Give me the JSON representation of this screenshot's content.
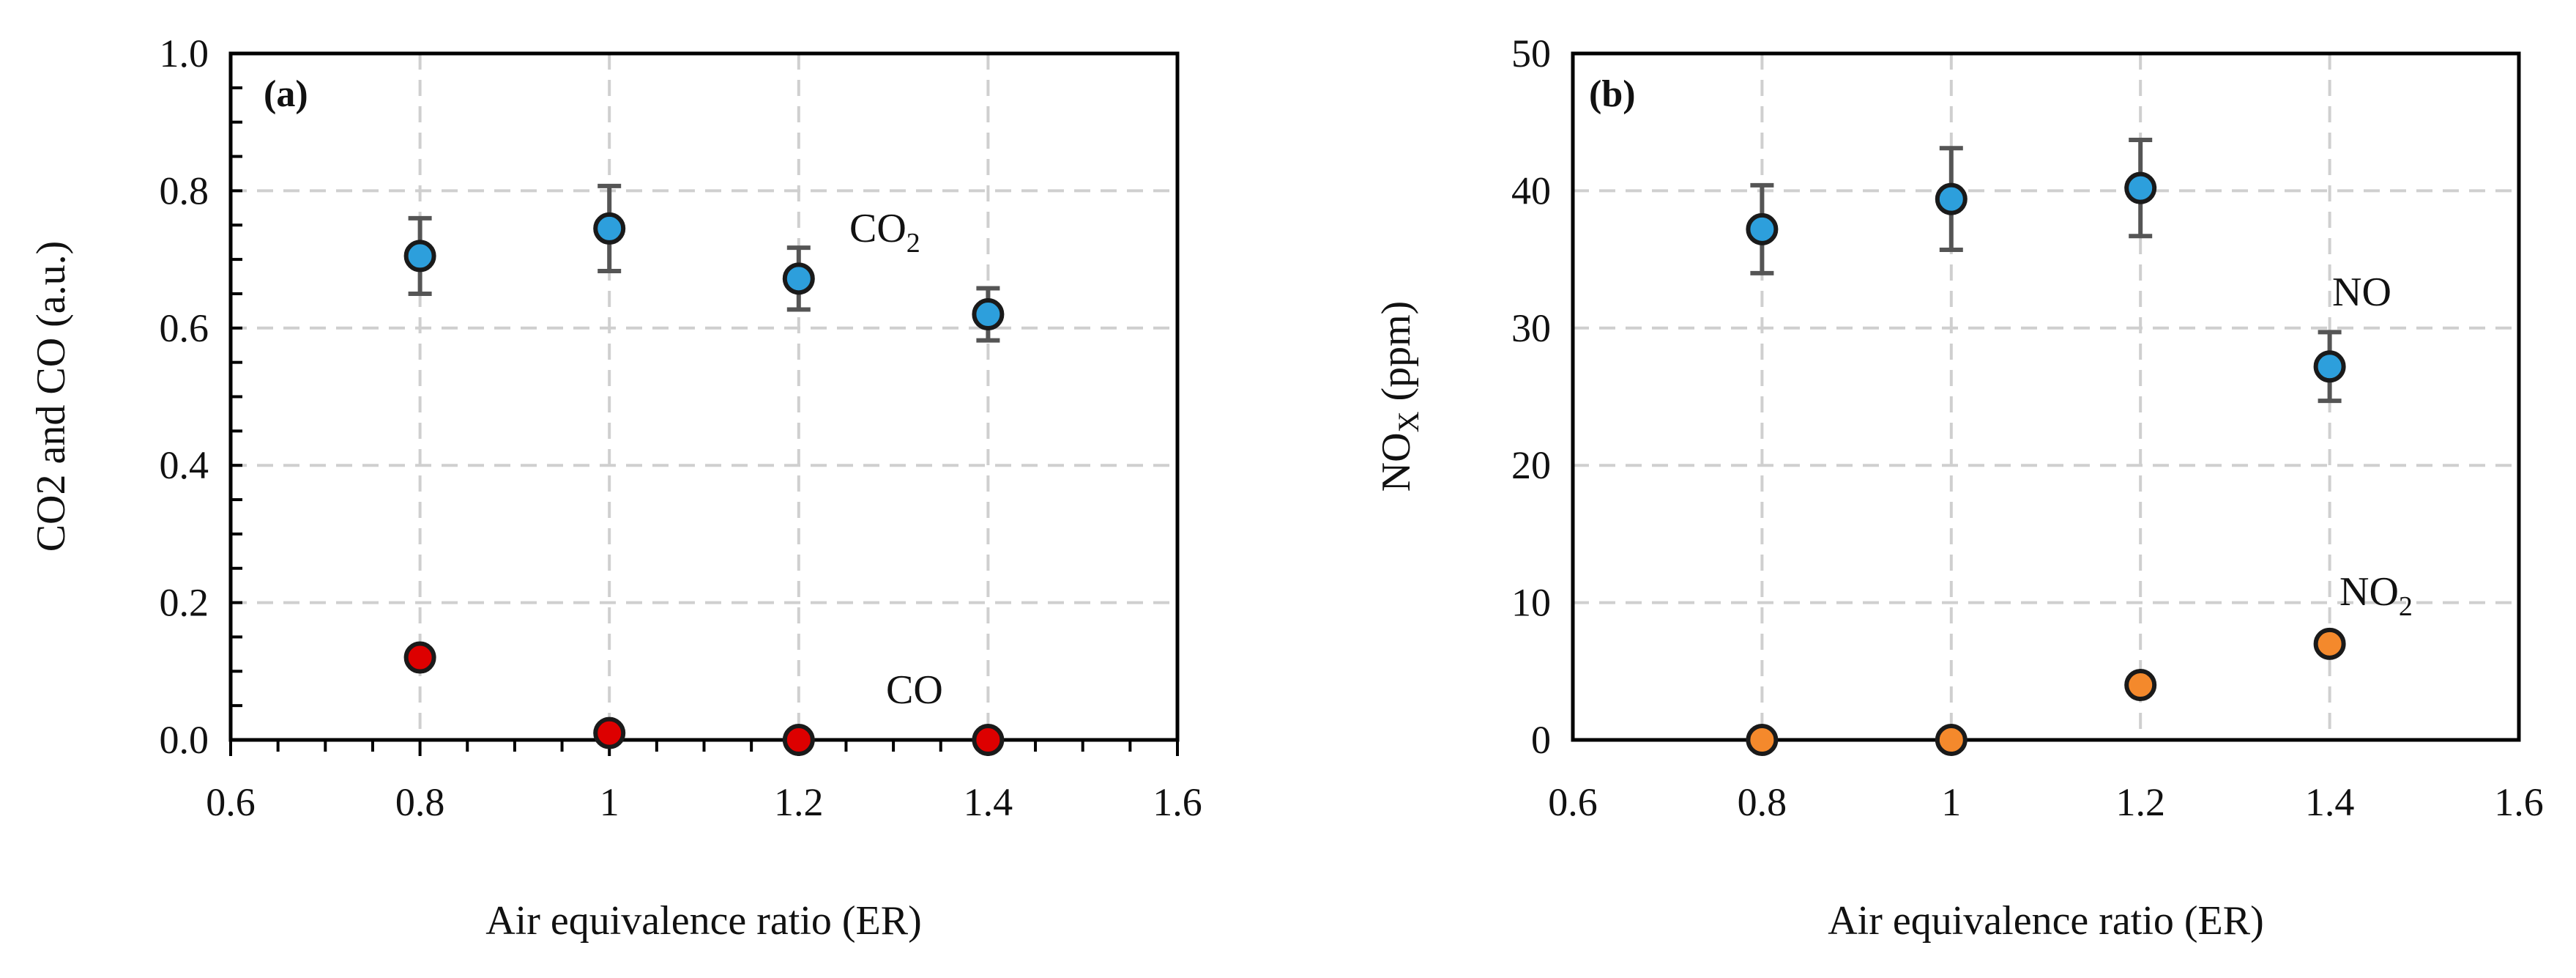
{
  "chart_data": [
    {
      "id": "a",
      "type": "scatter",
      "panel_label": "(a)",
      "title": "",
      "xlabel": "Air equivalence ratio (ER)",
      "ylabel": "CO2 and CO (a.u.)",
      "xlim": [
        0.6,
        1.6
      ],
      "ylim": [
        0.0,
        1.0
      ],
      "xticks": [
        0.6,
        0.8,
        1.0,
        1.2,
        1.4,
        1.6
      ],
      "xtick_labels": [
        "0.6",
        "0.8",
        "1",
        "1.2",
        "1.4",
        "1.6"
      ],
      "yticks": [
        0.0,
        0.2,
        0.4,
        0.6,
        0.8,
        1.0
      ],
      "ytick_labels": [
        "0.0",
        "0.2",
        "0.4",
        "0.6",
        "0.8",
        "1.0"
      ],
      "minor_x": 0.05,
      "minor_y": 0.05,
      "grid": true,
      "series": [
        {
          "name": "CO2",
          "label_main": "CO",
          "label_sub": "2",
          "color": "#2d9fdc",
          "x": [
            0.8,
            1.0,
            1.2,
            1.4
          ],
          "y": [
            0.705,
            0.745,
            0.672,
            0.62
          ],
          "err": [
            0.055,
            0.062,
            0.045,
            0.038
          ]
        },
        {
          "name": "CO",
          "label_main": "CO",
          "label_sub": "",
          "color": "#dd0000",
          "x": [
            0.8,
            1.0,
            1.2,
            1.4
          ],
          "y": [
            0.12,
            0.01,
            0.0,
            0.0
          ],
          "err": [
            0.012,
            0.006,
            0.0,
            0.0
          ]
        }
      ]
    },
    {
      "id": "b",
      "type": "scatter",
      "panel_label": "(b)",
      "title": "",
      "xlabel": "Air equivalence ratio (ER)",
      "ylabel_main": "NO",
      "ylabel_sub": "X",
      "ylabel_rest": " (ppm)",
      "xlim": [
        0.6,
        1.6
      ],
      "ylim": [
        0,
        50
      ],
      "xticks": [
        0.6,
        0.8,
        1.0,
        1.2,
        1.4,
        1.6
      ],
      "xtick_labels": [
        "0.6",
        "0.8",
        "1",
        "1.2",
        "1.4",
        "1.6"
      ],
      "yticks": [
        0,
        10,
        20,
        30,
        40,
        50
      ],
      "ytick_labels": [
        "0",
        "10",
        "20",
        "30",
        "40",
        "50"
      ],
      "grid": true,
      "series": [
        {
          "name": "NO",
          "label_main": "NO",
          "label_sub": "",
          "color": "#2d9fdc",
          "x": [
            0.8,
            1.0,
            1.2,
            1.4
          ],
          "y": [
            37.2,
            39.4,
            40.2,
            27.2
          ],
          "err": [
            3.2,
            3.7,
            3.5,
            2.5
          ]
        },
        {
          "name": "NO2",
          "label_main": "NO",
          "label_sub": "2",
          "color": "#f4892c",
          "x": [
            0.8,
            1.0,
            1.2,
            1.4
          ],
          "y": [
            0.0,
            0.0,
            4.0,
            7.0
          ],
          "err": [
            0.0,
            0.0,
            0.3,
            0.6
          ]
        }
      ]
    }
  ]
}
